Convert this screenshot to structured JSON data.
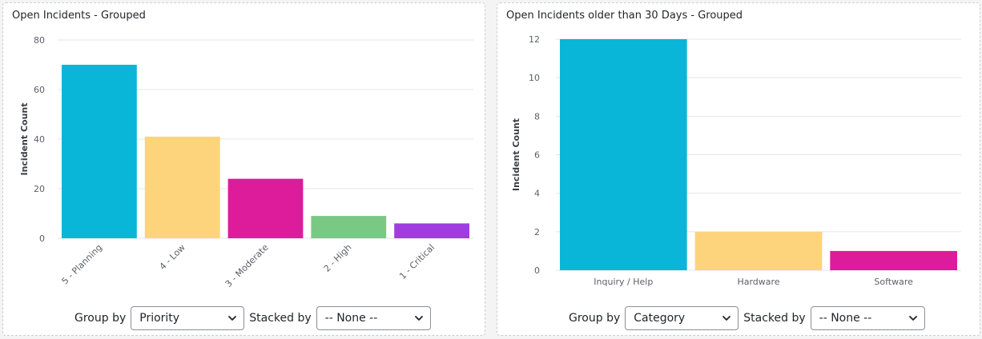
{
  "colors": {
    "blue": "#0ab6d8",
    "yellow": "#fdd37c",
    "magenta": "#dd1c9c",
    "green": "#79c985",
    "purple": "#a03de1",
    "grid": "#e3e5e8",
    "axis_text": "#5b6068"
  },
  "left_panel": {
    "title": "Open Incidents - Grouped",
    "group_by_label": "Group by",
    "group_by_value": "Priority",
    "stacked_by_label": "Stacked by",
    "stacked_by_value": "-- None --"
  },
  "right_panel": {
    "title": "Open Incidents older than 30 Days - Grouped",
    "group_by_label": "Group by",
    "group_by_value": "Category",
    "stacked_by_label": "Stacked by",
    "stacked_by_value": "-- None --"
  },
  "chart_data": [
    {
      "type": "bar",
      "title": "Open Incidents - Grouped",
      "ylabel": "Incident Count",
      "xlabel": "",
      "categories": [
        "5 - Planning",
        "4 - Low",
        "3 - Moderate",
        "2 - High",
        "1 - Critical"
      ],
      "values": [
        70,
        41,
        24,
        9,
        6
      ],
      "colors": [
        "#0ab6d8",
        "#fdd37c",
        "#dd1c9c",
        "#79c985",
        "#a03de1"
      ],
      "ylim": [
        0,
        80
      ],
      "yticks": [
        0,
        20,
        40,
        60,
        80
      ],
      "grid": true,
      "rotated_x_labels": true
    },
    {
      "type": "bar",
      "title": "Open Incidents older than 30 Days - Grouped",
      "ylabel": "Incident Count",
      "xlabel": "",
      "categories": [
        "Inquiry / Help",
        "Hardware",
        "Software"
      ],
      "values": [
        12,
        2,
        1
      ],
      "colors": [
        "#0ab6d8",
        "#fdd37c",
        "#dd1c9c"
      ],
      "ylim": [
        0,
        12
      ],
      "yticks": [
        0,
        2,
        4,
        6,
        8,
        10,
        12
      ],
      "grid": true,
      "rotated_x_labels": false
    }
  ]
}
